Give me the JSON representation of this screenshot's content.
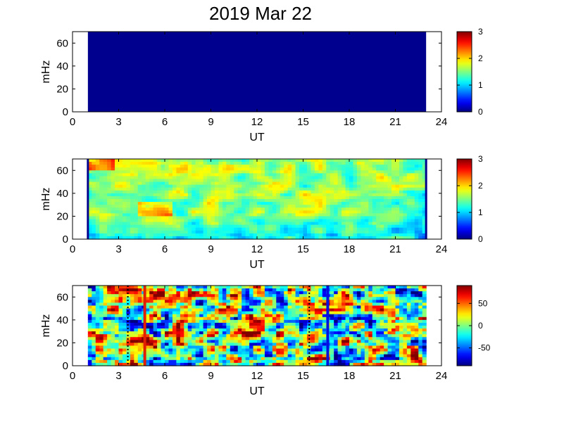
{
  "figure": {
    "title": "2019 Mar 22"
  },
  "chart_data": [
    {
      "type": "heatmap",
      "title": "2019 Mar 22",
      "xlabel": "UT",
      "ylabel": "mHz",
      "xlim": [
        0,
        24
      ],
      "ylim": [
        0,
        70
      ],
      "xticks": [
        0,
        3,
        6,
        9,
        12,
        15,
        18,
        21,
        24
      ],
      "yticks": [
        0,
        20,
        40,
        60
      ],
      "data_x_range": [
        1,
        23
      ],
      "colorbar": {
        "range": [
          0,
          3
        ],
        "ticks": [
          0,
          1,
          2,
          3
        ],
        "colormap": "jet"
      },
      "field": "uniform",
      "value": 0,
      "colors": {
        "fill": "#00008f"
      }
    },
    {
      "type": "heatmap",
      "xlabel": "UT",
      "ylabel": "mHz",
      "xlim": [
        0,
        24
      ],
      "ylim": [
        0,
        70
      ],
      "xticks": [
        0,
        3,
        6,
        9,
        12,
        15,
        18,
        21,
        24
      ],
      "yticks": [
        0,
        20,
        40,
        60
      ],
      "data_x_range": [
        1,
        23
      ],
      "colorbar": {
        "range": [
          0,
          3
        ],
        "ticks": [
          0,
          1,
          2,
          3
        ],
        "colormap": "jet"
      },
      "field": "power",
      "edge_lines": [
        1,
        23
      ],
      "colors": {
        "edge": "#00008f"
      }
    },
    {
      "type": "heatmap",
      "xlabel": "UT",
      "ylabel": "mHz",
      "xlim": [
        0,
        24
      ],
      "ylim": [
        0,
        70
      ],
      "xticks": [
        0,
        3,
        6,
        9,
        12,
        15,
        18,
        21,
        24
      ],
      "yticks": [
        0,
        20,
        40,
        60
      ],
      "data_x_range": [
        1,
        23
      ],
      "colorbar": {
        "range": [
          -90,
          90
        ],
        "ticks": [
          50,
          0,
          -50
        ],
        "tick_labels": [
          "50",
          "0",
          "-50"
        ],
        "colormap": "jet"
      },
      "field": "phase",
      "vertical_markers": [
        {
          "x": 4.7,
          "style": "solid",
          "color": "#e02000"
        },
        {
          "x": 16.6,
          "style": "solid",
          "color": "#0010e0"
        },
        {
          "x": 3.6,
          "style": "dotted",
          "color": "#000000"
        },
        {
          "x": 15.4,
          "style": "dotted",
          "color": "#000000"
        }
      ]
    }
  ]
}
